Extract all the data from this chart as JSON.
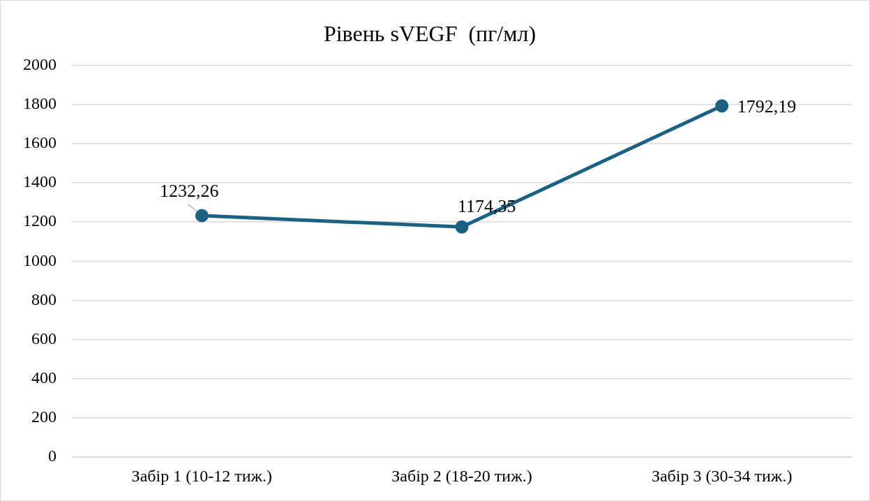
{
  "chart_data": {
    "type": "line",
    "title": "Рівень sVEGF  (пг/мл)",
    "categories": [
      "Забір 1 (10-12 тиж.)",
      "Забір 2 (18-20 тиж.)",
      "Забір 3 (30-34 тиж.)"
    ],
    "values": [
      1232.26,
      1174.35,
      1792.19
    ],
    "value_labels": [
      "1232,26",
      "1174,35",
      "1792,19"
    ],
    "color": "#1b6182",
    "marker": "circle",
    "line_style": "solid",
    "ylim": [
      0,
      2000
    ],
    "yticks": [
      0,
      200,
      400,
      600,
      800,
      1000,
      1200,
      1400,
      1600,
      1800,
      2000
    ],
    "grid": "y",
    "legend": false
  }
}
